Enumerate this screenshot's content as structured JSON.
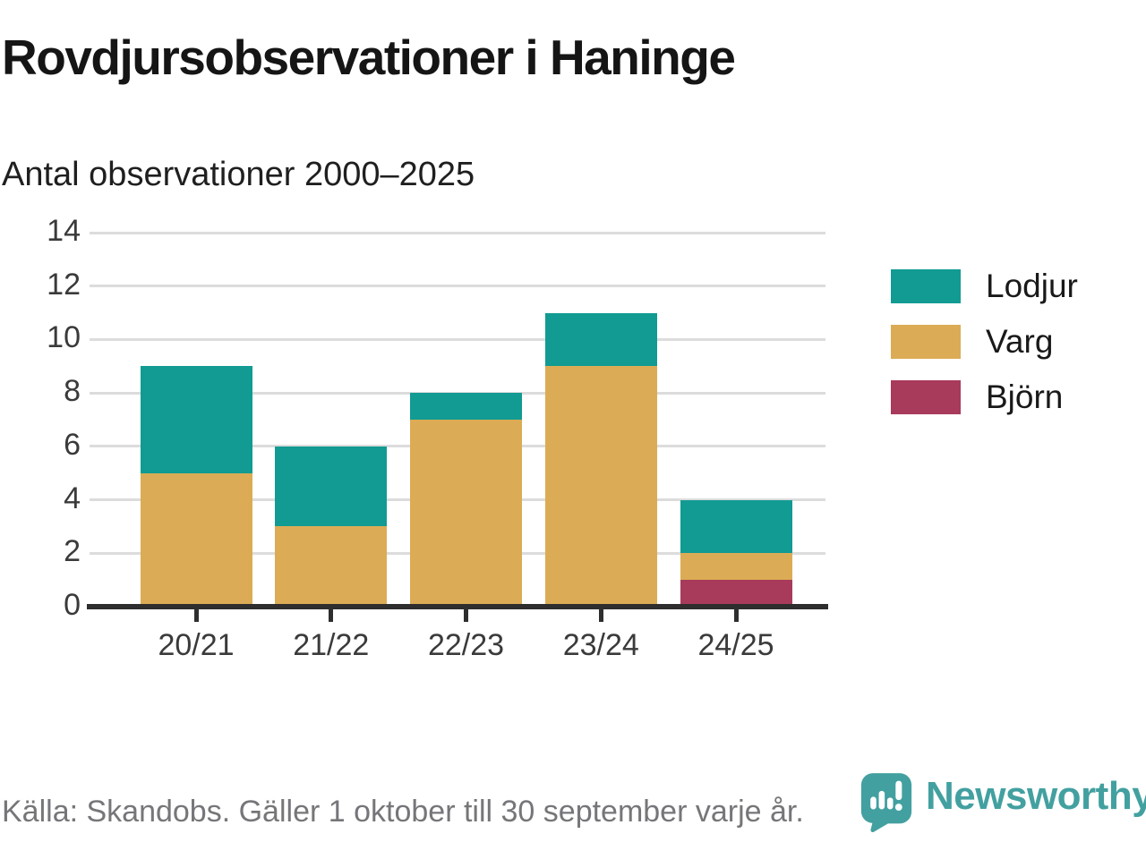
{
  "chart_data": {
    "type": "bar",
    "stacked": true,
    "title": "Rovdjursobservationer i Haninge",
    "subtitle": "Antal observationer 2000–2025",
    "categories": [
      "20/21",
      "21/22",
      "22/23",
      "23/24",
      "24/25"
    ],
    "series": [
      {
        "name": "Lodjur",
        "color": "#119B92",
        "values": [
          4,
          3,
          1,
          2,
          2
        ]
      },
      {
        "name": "Varg",
        "color": "#DBAC55",
        "values": [
          5,
          3,
          7,
          9,
          1
        ]
      },
      {
        "name": "Björn",
        "color": "#A83A5B",
        "values": [
          0,
          0,
          0,
          0,
          1
        ]
      }
    ],
    "stack_order_bottom_to_top": [
      "Björn",
      "Varg",
      "Lodjur"
    ],
    "totals": [
      9,
      6,
      8,
      11,
      4
    ],
    "ylim": [
      0,
      14
    ],
    "yticks": [
      0,
      2,
      4,
      6,
      8,
      10,
      12,
      14
    ],
    "grid": true,
    "legend_position": "right",
    "legend_order": [
      "Lodjur",
      "Varg",
      "Björn"
    ]
  },
  "footer": {
    "source": "Källa: Skandobs. Gäller 1 oktober till 30 september varje år.",
    "brand": "Newsworthy"
  },
  "colors": {
    "lodjur_teal": "#119B92",
    "varg_gold": "#DBAC55",
    "bjorn_maroon": "#A83A5B",
    "brand_teal": "#43A0A0",
    "gridline": "#DCDCDC",
    "axis": "#2E2E2E",
    "tick_label": "#3A3A3A",
    "source_gray": "#76767A"
  }
}
